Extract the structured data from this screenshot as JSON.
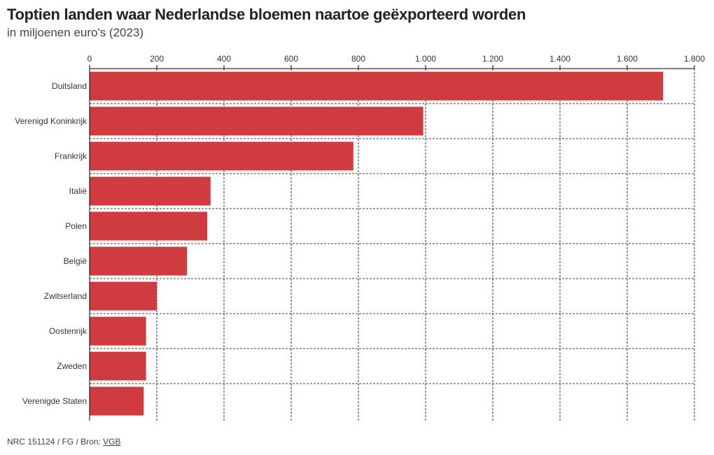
{
  "header": {
    "title": "Toptien landen waar Nederlandse bloemen naartoe geëxporteerd worden",
    "subtitle": "in miljoenen euro's (2023)"
  },
  "footer": {
    "credit": "NRC 151124 / FG / Bron: ",
    "source_link": "VGB"
  },
  "colors": {
    "bar": "#cf3b3e",
    "grid": "#000000",
    "text": "#333333"
  },
  "chart_data": {
    "type": "bar",
    "orientation": "horizontal",
    "title": "Toptien landen waar Nederlandse bloemen naartoe geëxporteerd worden",
    "subtitle": "in miljoenen euro's (2023)",
    "categories": [
      "Duitsland",
      "Verenigd Koninkrijk",
      "Frankrijk",
      "Italië",
      "Polen",
      "België",
      "Zwitserland",
      "Oostenrijk",
      "Zweden",
      "Verenigde Staten"
    ],
    "values": [
      1707,
      993,
      785,
      360,
      350,
      290,
      200,
      168,
      168,
      161
    ],
    "xlim": [
      0,
      1800
    ],
    "xticks": [
      0,
      200,
      400,
      600,
      800,
      1000,
      1200,
      1400,
      1600,
      1800
    ],
    "xtick_labels": [
      "0",
      "200",
      "400",
      "600",
      "800",
      "1.000",
      "1.200",
      "1.400",
      "1.600",
      "1.800"
    ],
    "axis_position": "top",
    "grid": true,
    "grid_style": "dashed",
    "legend": "none"
  }
}
